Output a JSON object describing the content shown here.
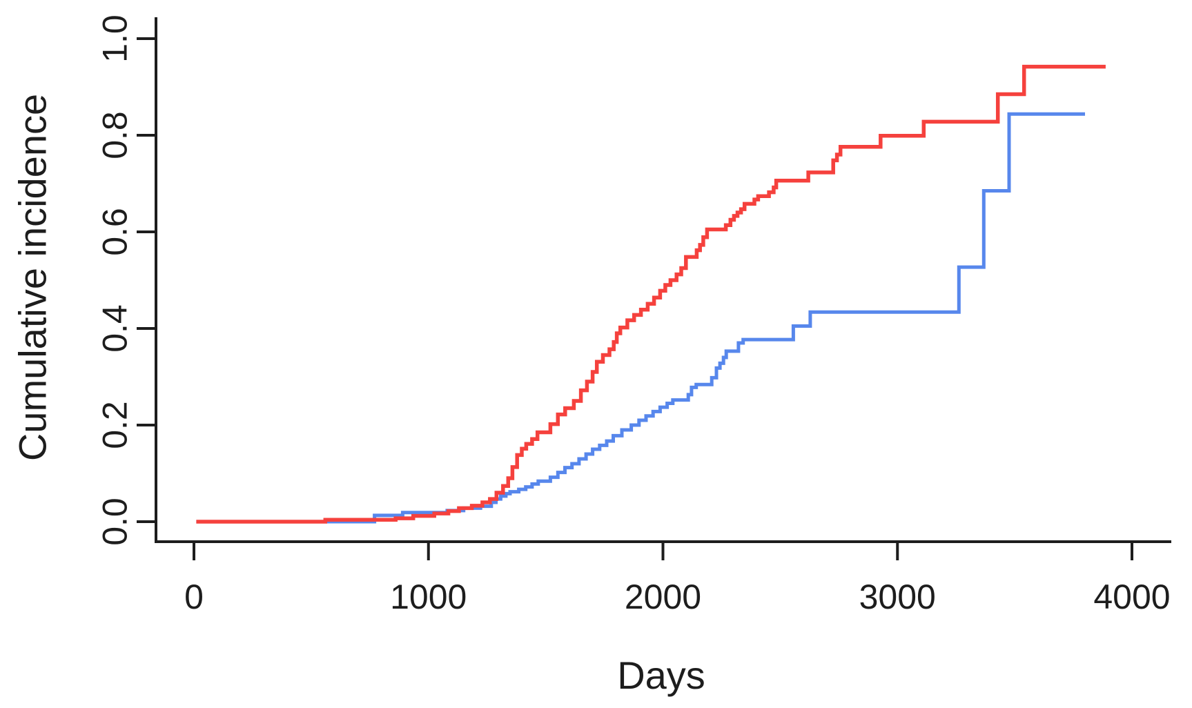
{
  "chart_data": {
    "type": "line",
    "style": "step-after",
    "title": "",
    "xlabel": "Days",
    "ylabel": "Cumulative incidence",
    "xlim": [
      0,
      4000
    ],
    "ylim": [
      0.0,
      1.0
    ],
    "grid": false,
    "legend": false,
    "background_color": "#ffffff",
    "axis_color": "#1d1d1d",
    "text_color": "#1d1d1d",
    "x_ticks": {
      "values": [
        0,
        1000,
        2000,
        3000,
        4000
      ],
      "labels": [
        "0",
        "1000",
        "2000",
        "3000",
        "4000"
      ]
    },
    "y_ticks": {
      "values": [
        0.0,
        0.2,
        0.4,
        0.6,
        0.8,
        1.0
      ],
      "labels": [
        "0.0",
        "0.2",
        "0.4",
        "0.6",
        "0.8",
        "1.0"
      ]
    },
    "series": [
      {
        "name": "blue-curve",
        "color": "#5787ec",
        "line_width": 5,
        "points": [
          [
            10,
            0.0
          ],
          [
            770,
            0.013
          ],
          [
            890,
            0.019
          ],
          [
            1080,
            0.023
          ],
          [
            1150,
            0.028
          ],
          [
            1222,
            0.032
          ],
          [
            1268,
            0.04
          ],
          [
            1288,
            0.047
          ],
          [
            1308,
            0.053
          ],
          [
            1330,
            0.058
          ],
          [
            1348,
            0.062
          ],
          [
            1385,
            0.067
          ],
          [
            1415,
            0.072
          ],
          [
            1442,
            0.078
          ],
          [
            1468,
            0.084
          ],
          [
            1520,
            0.092
          ],
          [
            1552,
            0.102
          ],
          [
            1582,
            0.112
          ],
          [
            1612,
            0.12
          ],
          [
            1642,
            0.13
          ],
          [
            1672,
            0.14
          ],
          [
            1700,
            0.15
          ],
          [
            1730,
            0.158
          ],
          [
            1760,
            0.167
          ],
          [
            1788,
            0.178
          ],
          [
            1825,
            0.19
          ],
          [
            1865,
            0.2
          ],
          [
            1898,
            0.21
          ],
          [
            1928,
            0.219
          ],
          [
            1958,
            0.228
          ],
          [
            1988,
            0.237
          ],
          [
            2018,
            0.245
          ],
          [
            2042,
            0.252
          ],
          [
            2108,
            0.263
          ],
          [
            2122,
            0.278
          ],
          [
            2142,
            0.284
          ],
          [
            2208,
            0.298
          ],
          [
            2228,
            0.318
          ],
          [
            2243,
            0.328
          ],
          [
            2258,
            0.34
          ],
          [
            2270,
            0.353
          ],
          [
            2322,
            0.37
          ],
          [
            2342,
            0.377
          ],
          [
            2556,
            0.405
          ],
          [
            2628,
            0.434
          ],
          [
            3262,
            0.527
          ],
          [
            3368,
            0.685
          ],
          [
            3476,
            0.844
          ],
          [
            3800,
            0.844
          ]
        ]
      },
      {
        "name": "red-curve",
        "color": "#f5413d",
        "line_width": 5.5,
        "points": [
          [
            10,
            0.0
          ],
          [
            560,
            0.004
          ],
          [
            860,
            0.007
          ],
          [
            935,
            0.012
          ],
          [
            1025,
            0.017
          ],
          [
            1085,
            0.022
          ],
          [
            1130,
            0.028
          ],
          [
            1185,
            0.033
          ],
          [
            1230,
            0.04
          ],
          [
            1262,
            0.047
          ],
          [
            1290,
            0.06
          ],
          [
            1318,
            0.074
          ],
          [
            1340,
            0.09
          ],
          [
            1358,
            0.113
          ],
          [
            1378,
            0.138
          ],
          [
            1398,
            0.151
          ],
          [
            1417,
            0.161
          ],
          [
            1442,
            0.171
          ],
          [
            1465,
            0.185
          ],
          [
            1520,
            0.202
          ],
          [
            1552,
            0.222
          ],
          [
            1583,
            0.235
          ],
          [
            1620,
            0.25
          ],
          [
            1650,
            0.272
          ],
          [
            1676,
            0.29
          ],
          [
            1700,
            0.31
          ],
          [
            1718,
            0.331
          ],
          [
            1744,
            0.345
          ],
          [
            1772,
            0.357
          ],
          [
            1790,
            0.372
          ],
          [
            1803,
            0.39
          ],
          [
            1818,
            0.402
          ],
          [
            1848,
            0.417
          ],
          [
            1877,
            0.428
          ],
          [
            1906,
            0.439
          ],
          [
            1935,
            0.451
          ],
          [
            1962,
            0.464
          ],
          [
            1988,
            0.478
          ],
          [
            2010,
            0.49
          ],
          [
            2032,
            0.5
          ],
          [
            2058,
            0.512
          ],
          [
            2078,
            0.525
          ],
          [
            2098,
            0.548
          ],
          [
            2144,
            0.562
          ],
          [
            2158,
            0.573
          ],
          [
            2172,
            0.589
          ],
          [
            2188,
            0.605
          ],
          [
            2268,
            0.614
          ],
          [
            2288,
            0.625
          ],
          [
            2303,
            0.633
          ],
          [
            2318,
            0.64
          ],
          [
            2333,
            0.647
          ],
          [
            2348,
            0.658
          ],
          [
            2390,
            0.667
          ],
          [
            2406,
            0.674
          ],
          [
            2452,
            0.682
          ],
          [
            2472,
            0.692
          ],
          [
            2483,
            0.706
          ],
          [
            2620,
            0.723
          ],
          [
            2726,
            0.748
          ],
          [
            2742,
            0.76
          ],
          [
            2757,
            0.776
          ],
          [
            2928,
            0.799
          ],
          [
            3112,
            0.828
          ],
          [
            3428,
            0.885
          ],
          [
            3540,
            0.942
          ],
          [
            3888,
            0.942
          ]
        ]
      }
    ]
  }
}
